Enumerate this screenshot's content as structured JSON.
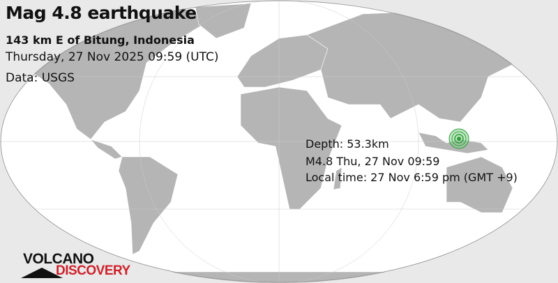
{
  "header": {
    "title": "Mag 4.8 earthquake",
    "location": "143 km E of Bitung, Indonesia",
    "datetime": "Thursday, 27 Nov 2025 09:59 (UTC)",
    "source": "Data: USGS"
  },
  "event_info": {
    "depth": "Depth: 53.3km",
    "summary": "M4.8 Thu, 27 Nov 09:59",
    "local_time": "Local time: 27 Nov 6:59 pm (GMT +9)"
  },
  "logo": {
    "line1": "VOLCANO",
    "line2": "DISCOVERY"
  },
  "colors": {
    "land": "#b5b5b5",
    "ocean": "#ffffff",
    "marker": "#2e9e3a",
    "logo_red": "#d0202a"
  },
  "marker": {
    "icon": "earthquake-epicenter-icon",
    "magnitude": 4.8
  }
}
